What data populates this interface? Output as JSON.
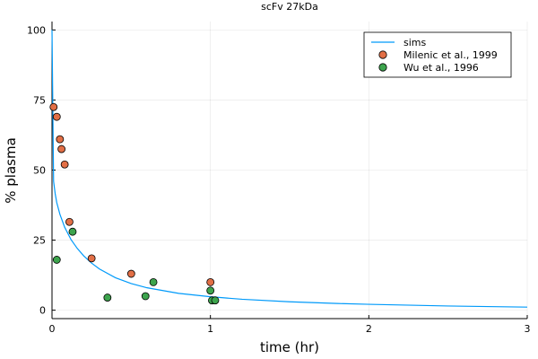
{
  "chart_data": {
    "type": "scatter",
    "title": "scFv 27kDa",
    "xlabel": "time (hr)",
    "ylabel": "% plasma",
    "xlim": [
      0,
      3
    ],
    "ylim": [
      -3,
      103
    ],
    "xticks": [
      0,
      1,
      2,
      3
    ],
    "yticks": [
      0,
      25,
      50,
      75,
      100
    ],
    "grid": true,
    "legend_position": "top-right",
    "series": [
      {
        "name": "sims",
        "kind": "line",
        "color": "#009AFA",
        "x": [
          0,
          0.01,
          0.02,
          0.03,
          0.05,
          0.08,
          0.12,
          0.16,
          0.2,
          0.25,
          0.3,
          0.4,
          0.5,
          0.6,
          0.8,
          1.0,
          1.2,
          1.5,
          1.8,
          2.0,
          2.5,
          3.0
        ],
        "y": [
          100,
          46,
          41.6,
          38.4,
          34.2,
          29.6,
          25.2,
          22.0,
          19.4,
          16.8,
          14.7,
          11.6,
          9.5,
          8.0,
          6.0,
          4.8,
          3.9,
          3.0,
          2.4,
          2.1,
          1.5,
          1.1
        ]
      },
      {
        "name": "Milenic et al., 1999",
        "kind": "scatter",
        "color": "#E26F46",
        "x": [
          0.01,
          0.03,
          0.05,
          0.06,
          0.08,
          0.11,
          0.25,
          0.5,
          1.0
        ],
        "y": [
          72.5,
          69,
          61,
          57.5,
          52,
          31.5,
          18.5,
          13,
          10
        ]
      },
      {
        "name": "Wu et al., 1996",
        "kind": "scatter",
        "color": "#3DA44D",
        "x": [
          0.03,
          0.13,
          0.35,
          0.59,
          0.64,
          1.0,
          1.01,
          1.03
        ],
        "y": [
          18,
          28,
          4.5,
          5,
          10,
          7,
          3.5,
          3.5
        ]
      }
    ]
  }
}
